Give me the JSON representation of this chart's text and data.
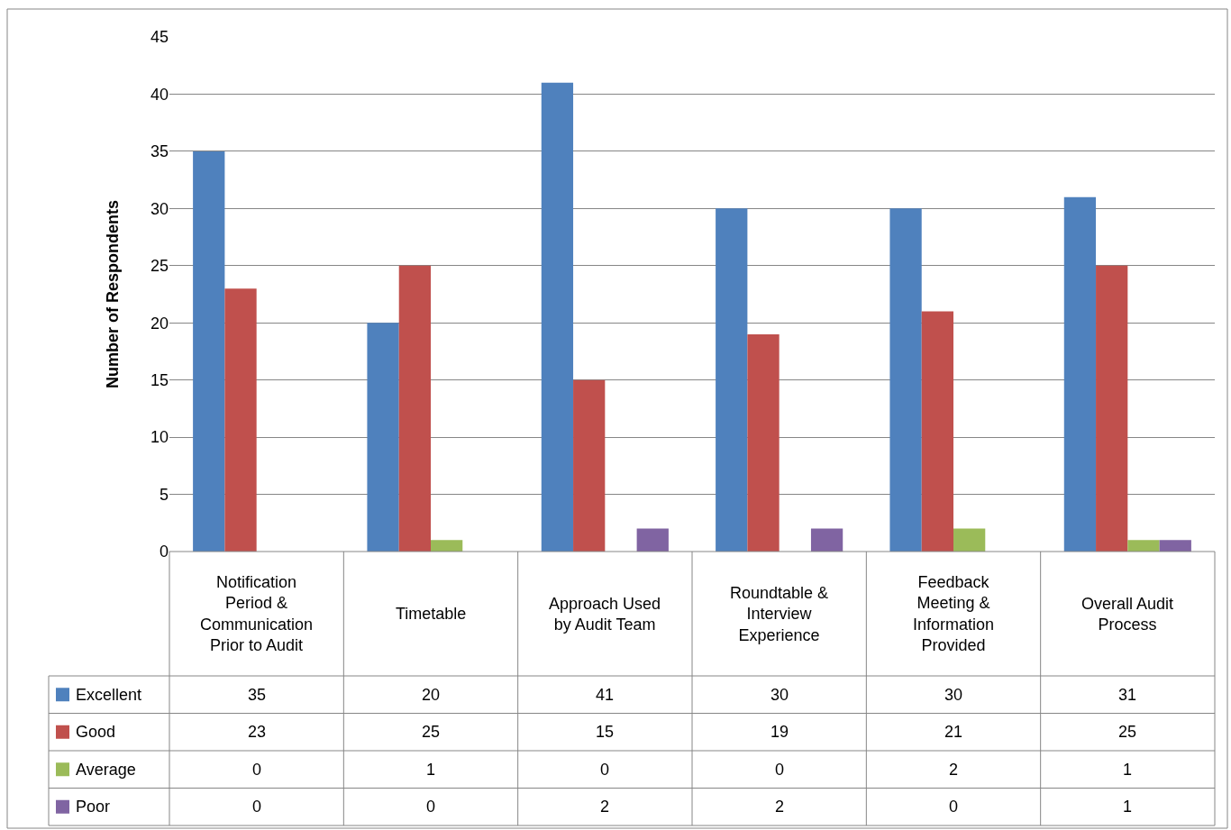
{
  "chart_data": {
    "type": "bar",
    "ylabel": "Number of Respondents",
    "categories": [
      "Notification Period & Communication Prior to Audit",
      "Timetable",
      "Approach Used by Audit Team",
      "Roundtable & Interview Experience",
      "Feedback Meeting & Information Provided",
      "Overall Audit Process"
    ],
    "series": [
      {
        "name": "Excellent",
        "color": "#4f81bd",
        "values": [
          35,
          20,
          41,
          30,
          30,
          31
        ]
      },
      {
        "name": "Good",
        "color": "#c0504d",
        "values": [
          23,
          25,
          15,
          19,
          21,
          25
        ]
      },
      {
        "name": "Average",
        "color": "#9bbb59",
        "values": [
          0,
          1,
          0,
          0,
          2,
          1
        ]
      },
      {
        "name": "Poor",
        "color": "#8064a2",
        "values": [
          0,
          0,
          2,
          2,
          0,
          1
        ]
      }
    ],
    "ylim": [
      0,
      45
    ],
    "yticks": [
      0,
      5,
      10,
      15,
      20,
      25,
      30,
      35,
      40,
      45
    ],
    "grid": "y",
    "legend": "bottom",
    "data_labels": true
  }
}
